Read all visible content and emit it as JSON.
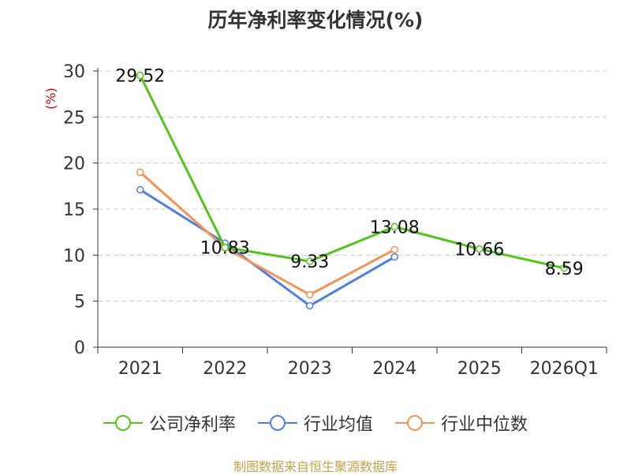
{
  "chart_data": {
    "type": "line",
    "title": "历年净利率变化情况(%)",
    "ylabel": "(%)",
    "xlabel": "",
    "categories": [
      "2021",
      "2022",
      "2023",
      "2024",
      "2025",
      "2026Q1"
    ],
    "ylim": [
      0,
      30
    ],
    "yticks": [
      0,
      5,
      10,
      15,
      20,
      25,
      30
    ],
    "grid": true,
    "legend_position": "bottom",
    "series": [
      {
        "name": "公司净利率",
        "color": "#52c41a",
        "values": [
          29.52,
          10.83,
          9.33,
          13.08,
          10.66,
          8.59
        ],
        "labels": [
          "29.52",
          "10.83",
          "9.33",
          "13.08",
          "10.66",
          "8.59"
        ]
      },
      {
        "name": "行业均值",
        "color": "#4f7fde",
        "values": [
          17.1,
          11.3,
          4.5,
          9.8,
          null,
          null
        ]
      },
      {
        "name": "行业中位数",
        "color": "#f59356",
        "values": [
          19.0,
          10.8,
          5.7,
          10.6,
          null,
          null
        ]
      }
    ]
  },
  "footer": {
    "source": "制图数据来自恒生聚源数据库"
  }
}
